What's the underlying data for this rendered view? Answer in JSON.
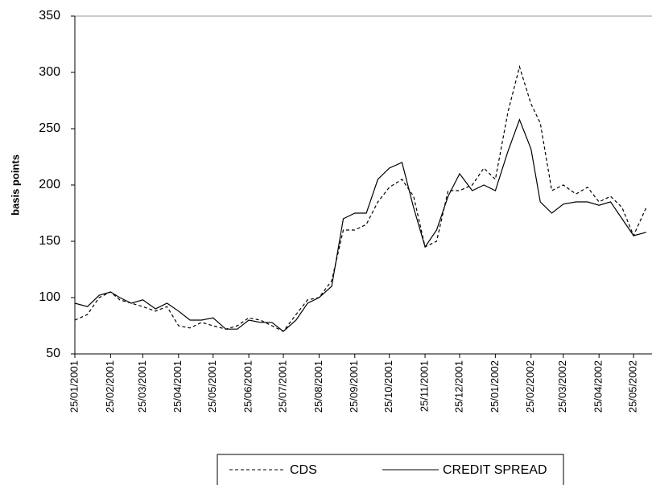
{
  "chart_data": {
    "type": "line",
    "y_label": "basis points",
    "x": [
      "25/01/2001",
      "05/02/2001",
      "15/02/2001",
      "25/02/2001",
      "05/03/2001",
      "15/03/2001",
      "25/03/2001",
      "05/04/2001",
      "15/04/2001",
      "25/04/2001",
      "05/05/2001",
      "15/05/2001",
      "25/05/2001",
      "05/06/2001",
      "15/06/2001",
      "25/06/2001",
      "05/07/2001",
      "15/07/2001",
      "25/07/2001",
      "05/08/2001",
      "15/08/2001",
      "25/08/2001",
      "05/09/2001",
      "15/09/2001",
      "25/09/2001",
      "05/10/2001",
      "15/10/2001",
      "25/10/2001",
      "05/11/2001",
      "15/11/2001",
      "25/11/2001",
      "05/12/2001",
      "15/12/2001",
      "25/12/2001",
      "05/01/2002",
      "15/01/2002",
      "25/01/2002",
      "05/02/2002",
      "15/02/2002",
      "25/02/2002",
      "05/03/2002",
      "15/03/2002",
      "25/03/2002",
      "05/04/2002",
      "15/04/2002",
      "25/04/2002",
      "05/05/2002",
      "15/05/2002",
      "25/05/2002",
      "05/06/2002"
    ],
    "series": [
      {
        "name": "CDS",
        "color": "#000000",
        "style": "dashed",
        "values": [
          80,
          85,
          100,
          105,
          98,
          95,
          92,
          88,
          92,
          75,
          73,
          78,
          75,
          72,
          75,
          82,
          80,
          75,
          70,
          85,
          98,
          100,
          115,
          160,
          160,
          165,
          185,
          198,
          205,
          190,
          145,
          150,
          195,
          195,
          200,
          215,
          205,
          265,
          305,
          272,
          255,
          195,
          200,
          192,
          198,
          185,
          190,
          180,
          155,
          180
        ]
      },
      {
        "name": "CREDIT SPREAD",
        "color": "#000000",
        "style": "solid",
        "values": [
          95,
          92,
          102,
          105,
          100,
          95,
          98,
          90,
          95,
          88,
          80,
          80,
          82,
          72,
          72,
          80,
          78,
          78,
          70,
          80,
          95,
          100,
          110,
          170,
          175,
          175,
          205,
          215,
          220,
          180,
          145,
          160,
          190,
          210,
          195,
          200,
          195,
          230,
          258,
          232,
          185,
          175,
          183,
          185,
          185,
          182,
          185,
          170,
          155,
          158
        ]
      }
    ],
    "xlim": [
      "25/01/2001",
      "10/06/2002"
    ],
    "xticks": [
      "25/01/2001",
      "25/02/2001",
      "25/03/2001",
      "25/04/2001",
      "25/05/2001",
      "25/06/2001",
      "25/07/2001",
      "25/08/2001",
      "25/09/2001",
      "25/10/2001",
      "25/11/2001",
      "25/12/2001",
      "25/01/2002",
      "25/02/2002",
      "25/03/2002",
      "25/04/2002",
      "25/05/2002"
    ],
    "ylim": [
      50,
      350
    ],
    "yticks": [
      50,
      100,
      150,
      200,
      250,
      300,
      350
    ]
  }
}
